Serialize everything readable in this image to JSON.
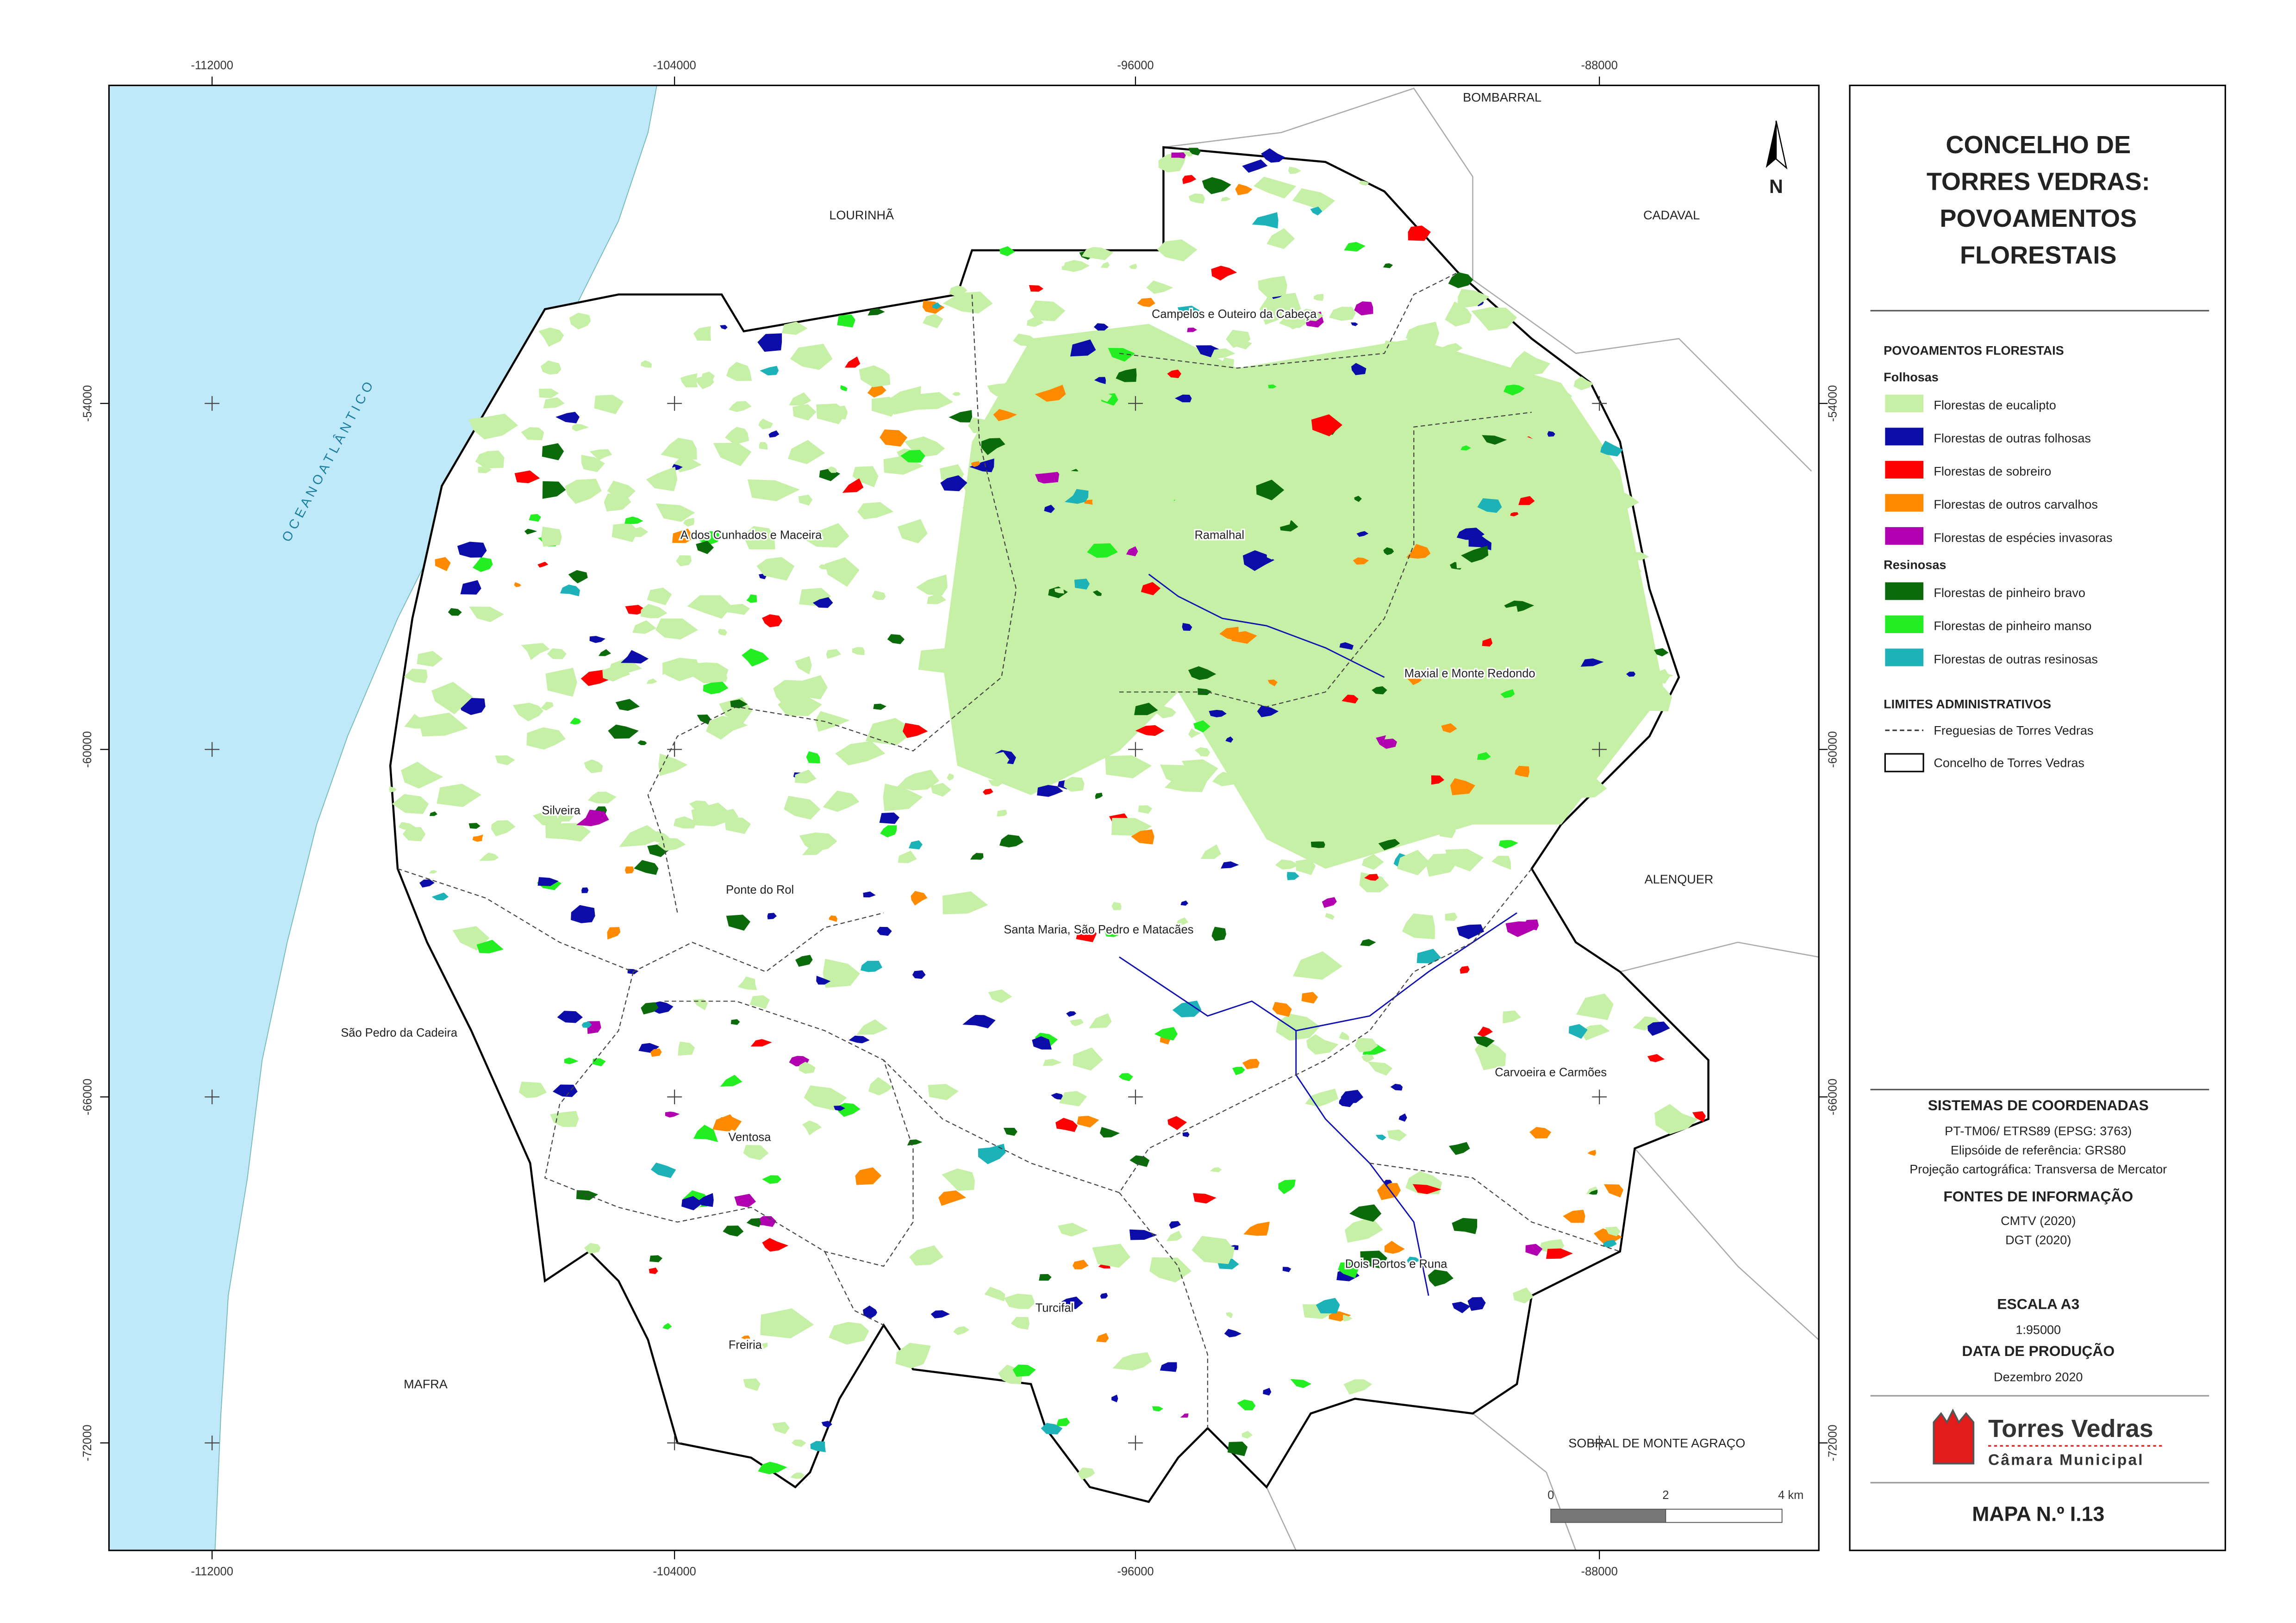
{
  "title": [
    "CONCELHO DE",
    "TORRES VEDRAS:",
    "POVOAMENTOS",
    "FLORESTAIS"
  ],
  "grid_labels": {
    "x": [
      "-112000",
      "-104000",
      "-96000",
      "-88000"
    ],
    "y": [
      "-54000",
      "-60000",
      "-66000",
      "-72000"
    ]
  },
  "north": "N",
  "ocean": "O C E A N O   A T L Â N T I C O",
  "neighbours": [
    "LOURINHÃ",
    "CADAVAL",
    "BOMBARRAL",
    "ALENQUER",
    "MAFRA",
    "SOBRAL DE MONTE AGRAÇO"
  ],
  "parishes": [
    "Campelos e Outeiro da Cabeça",
    "A dos Cunhados e Maceira",
    "Ramalhal",
    "Maxial e Monte Redondo",
    "Silveira",
    "Ponte do Rol",
    "Santa Maria, São Pedro e Matacães",
    "São Pedro da Cadeira",
    "Carvoeira e Carmões",
    "Ventosa",
    "Dois Portos e Runa",
    "Turcifal",
    "Freiria"
  ],
  "legend": {
    "heading": "POVOAMENTOS FLORESTAIS",
    "groups": [
      {
        "name": "Folhosas",
        "items": [
          {
            "label": "Florestas de eucalipto",
            "color": "#c6f0a6"
          },
          {
            "label": "Florestas de outras folhosas",
            "color": "#0c0ca8"
          },
          {
            "label": "Florestas de sobreiro",
            "color": "#ff0000"
          },
          {
            "label": "Florestas de outros carvalhos",
            "color": "#ff8a00"
          },
          {
            "label": "Florestas de espécies invasoras",
            "color": "#b000b0"
          }
        ]
      },
      {
        "name": "Resinosas",
        "items": [
          {
            "label": "Florestas de pinheiro bravo",
            "color": "#0b6b0b"
          },
          {
            "label": "Florestas de pinheiro manso",
            "color": "#22ee22"
          },
          {
            "label": "Florestas de outras resinosas",
            "color": "#1cb2b8"
          }
        ]
      }
    ],
    "limits_heading": "LIMITES ADMINISTRATIVOS",
    "limits": [
      "Freguesias de Torres Vedras",
      "Concelho de Torres Vedras"
    ]
  },
  "coordinates": {
    "heading": "SISTEMAS DE COORDENADAS",
    "lines": [
      "PT-TM06/ ETRS89 (EPSG: 3763)",
      "Elipsóide de referência: GRS80",
      "Projeção cartográfica: Transversa de Mercator"
    ]
  },
  "sources": {
    "heading": "FONTES DE INFORMAÇÃO",
    "lines": [
      "CMTV (2020)",
      "DGT (2020)"
    ]
  },
  "scale": {
    "heading": "ESCALA A3",
    "value": "1:95000",
    "bar_labels": [
      "0",
      "2",
      "4 km"
    ]
  },
  "date": {
    "heading": "DATA DE PRODUÇÃO",
    "value": "Dezembro 2020"
  },
  "logo": {
    "name": "Torres Vedras",
    "subtitle": "Câmara Municipal"
  },
  "map_number": "MAPA N.º I.13"
}
